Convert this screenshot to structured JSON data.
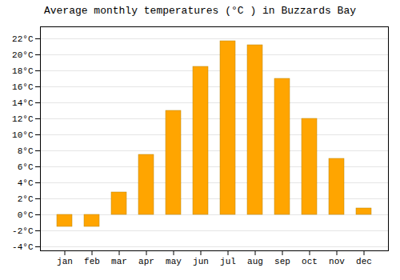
{
  "chart_data": {
    "type": "bar",
    "title": "Average monthly temperatures (°C ) in Buzzards Bay",
    "categories": [
      "jan",
      "feb",
      "mar",
      "apr",
      "may",
      "jun",
      "jul",
      "aug",
      "sep",
      "oct",
      "nov",
      "dec"
    ],
    "values": [
      -1.5,
      -1.5,
      2.8,
      7.5,
      13.0,
      18.5,
      21.7,
      21.2,
      17.0,
      12.0,
      7.0,
      0.8
    ],
    "color": "#FFA500",
    "ylim": [
      -4.5,
      23.5
    ],
    "yticks": [
      {
        "value": -4,
        "label": "-4°C"
      },
      {
        "value": -2,
        "label": "-2°C"
      },
      {
        "value": 0,
        "label": "0°C"
      },
      {
        "value": 2,
        "label": "2°C"
      },
      {
        "value": 4,
        "label": "4°C"
      },
      {
        "value": 6,
        "label": "6°C"
      },
      {
        "value": 8,
        "label": "8°C"
      },
      {
        "value": 10,
        "label": "10°C"
      },
      {
        "value": 12,
        "label": "12°C"
      },
      {
        "value": 14,
        "label": "14°C"
      },
      {
        "value": 16,
        "label": "16°C"
      },
      {
        "value": 18,
        "label": "18°C"
      },
      {
        "value": 20,
        "label": "20°C"
      },
      {
        "value": 22,
        "label": "22°C"
      }
    ],
    "grid": true
  }
}
